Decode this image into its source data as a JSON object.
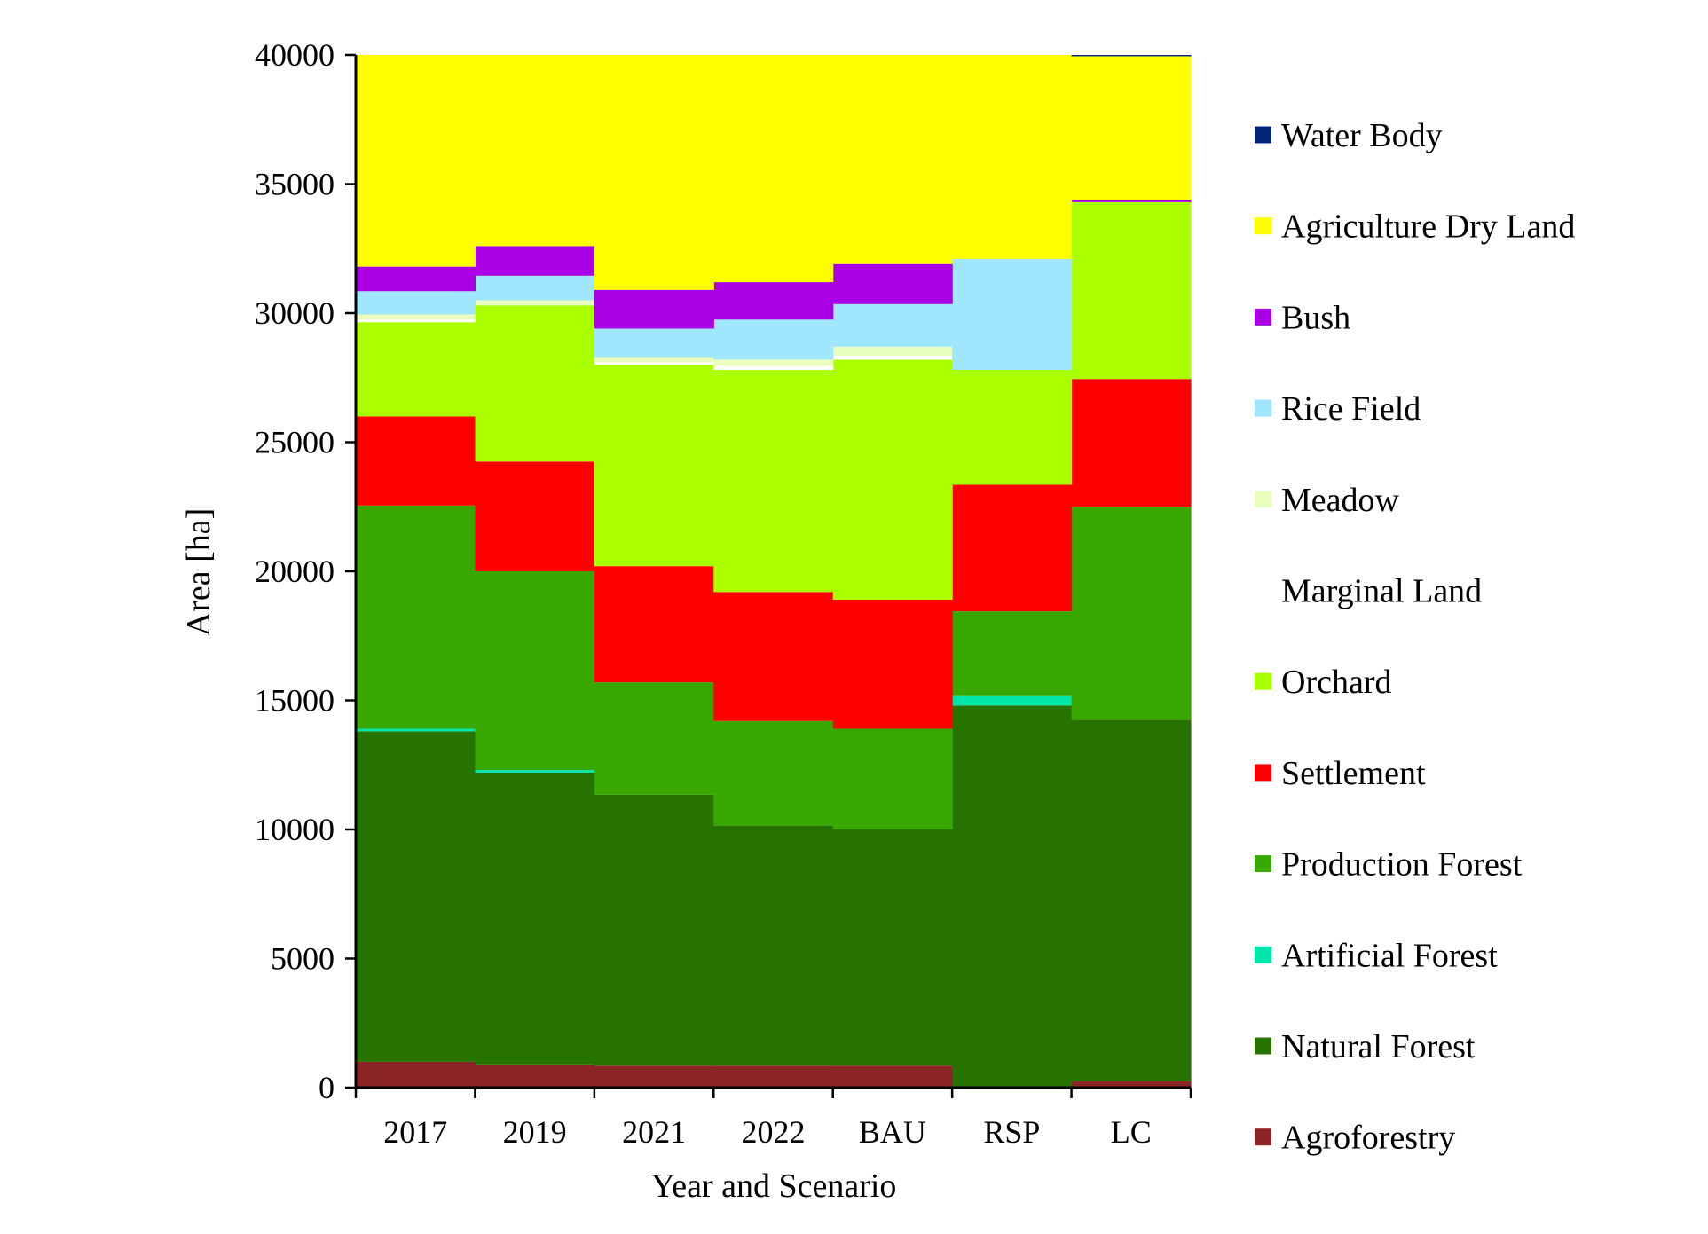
{
  "chart_data": {
    "type": "area",
    "subtype": "stacked-step",
    "title": "",
    "xlabel": "Year and Scenario",
    "ylabel": "Area [ha]",
    "ylim": [
      0,
      40000
    ],
    "yticks": [
      "0",
      "5000",
      "10000",
      "15000",
      "20000",
      "25000",
      "30000",
      "35000",
      "40000"
    ],
    "categories": [
      "2017",
      "2019",
      "2021",
      "2022",
      "BAU",
      "RSP",
      "LC"
    ],
    "grid": false,
    "legend_position": "right",
    "series": [
      {
        "name": "Agroforestry",
        "color": "#8B2525",
        "values": [
          1000,
          900,
          850,
          850,
          850,
          50,
          250
        ]
      },
      {
        "name": "Natural Forest",
        "color": "#267300",
        "values": [
          12800,
          11300,
          10500,
          9300,
          9150,
          14750,
          14000
        ]
      },
      {
        "name": "Artificial Forest",
        "color": "#00E6A9",
        "values": [
          100,
          100,
          0,
          0,
          0,
          400,
          0
        ]
      },
      {
        "name": "Production Forest",
        "color": "#38A800",
        "values": [
          8650,
          7700,
          4350,
          4050,
          3900,
          3250,
          8250
        ]
      },
      {
        "name": "Settlement",
        "color": "#FF0000",
        "values": [
          3450,
          4250,
          4500,
          5000,
          5000,
          4900,
          4950
        ]
      },
      {
        "name": "Orchard",
        "color": "#AAFF00",
        "values": [
          3650,
          6050,
          7800,
          8600,
          9300,
          4450,
          6850
        ]
      },
      {
        "name": "Marginal Land",
        "color": "#FFFFFF",
        "values": [
          100,
          0,
          100,
          150,
          150,
          0,
          0
        ]
      },
      {
        "name": "Meadow",
        "color": "#E9FFBE",
        "values": [
          200,
          200,
          200,
          250,
          350,
          0,
          0
        ]
      },
      {
        "name": "Rice Field",
        "color": "#A0E6FF",
        "values": [
          900,
          950,
          1100,
          1550,
          1650,
          4300,
          0
        ]
      },
      {
        "name": "Bush",
        "color": "#A900E6",
        "values": [
          950,
          1150,
          1500,
          1450,
          1550,
          0,
          100
        ]
      },
      {
        "name": "Agriculture Dry Land",
        "color": "#FFFF00",
        "values": [
          8200,
          7400,
          9100,
          8800,
          8100,
          7900,
          5550
        ]
      },
      {
        "name": "Water Body",
        "color": "#002673",
        "values": [
          0,
          0,
          0,
          0,
          0,
          0,
          50
        ]
      }
    ]
  }
}
